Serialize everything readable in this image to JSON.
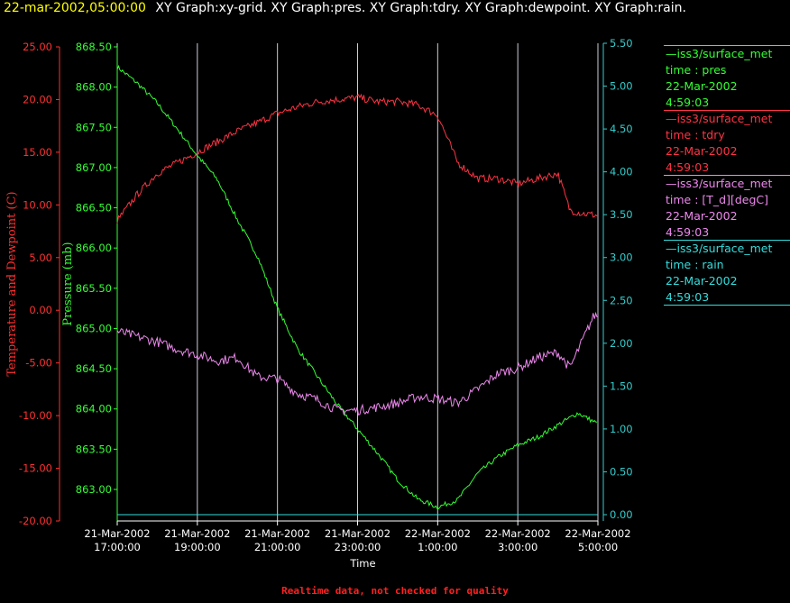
{
  "header": {
    "timestamp": "22-mar-2002,05:00:00",
    "titles": "XY Graph:xy-grid.  XY Graph:pres.  XY Graph:tdry.  XY Graph:dewpoint.  XY Graph:rain."
  },
  "colors": {
    "timestamp": "#ffff00",
    "temperature_axis": "#ff3030",
    "pressure_axis": "#33ff33",
    "rain_axis": "#33cccc",
    "pres_series": "#33ff33",
    "tdry_series": "#ff3344",
    "dewpoint_series": "#ee88ee",
    "rain_series": "#33dddd",
    "grid": "#ccccdd",
    "footer": "#ff2020"
  },
  "legend": [
    {
      "name": "—iss3/surface_met",
      "label": "time : pres",
      "date": "22-Mar-2002",
      "time": "4:59:03",
      "color": "#33ff33"
    },
    {
      "name": "—iss3/surface_met",
      "label": "time : tdry",
      "date": "22-Mar-2002",
      "time": "4:59:03",
      "color": "#ff3344"
    },
    {
      "name": "—iss3/surface_met",
      "label": "time : [T_d][degC]",
      "date": "22-Mar-2002",
      "time": "4:59:03",
      "color": "#ee88ee"
    },
    {
      "name": "—iss3/surface_met",
      "label": "time : rain",
      "date": "22-Mar-2002",
      "time": "4:59:03",
      "color": "#33dddd"
    }
  ],
  "footer": "Realtime data, not checked for quality",
  "chart_data": {
    "type": "line",
    "xlabel": "Time",
    "x_range_hours": [
      17,
      29
    ],
    "x_ticks": [
      {
        "date": "21-Mar-2002",
        "time": "17:00:00"
      },
      {
        "date": "21-Mar-2002",
        "time": "19:00:00"
      },
      {
        "date": "21-Mar-2002",
        "time": "21:00:00"
      },
      {
        "date": "21-Mar-2002",
        "time": "23:00:00"
      },
      {
        "date": "22-Mar-2002",
        "time": "1:00:00"
      },
      {
        "date": "22-Mar-2002",
        "time": "3:00:00"
      },
      {
        "date": "22-Mar-2002",
        "time": "5:00:00"
      }
    ],
    "grid": true,
    "axes": [
      {
        "id": "temp",
        "side": "left-outer",
        "label": "Temperature and Dewpoint (C)",
        "range": [
          -20,
          25
        ],
        "ticks": [
          "25.00",
          "20.00",
          "15.00",
          "10.00",
          "5.00",
          "0.00",
          "-5.00",
          "-10.00",
          "-15.00",
          "-20.00"
        ]
      },
      {
        "id": "pres",
        "side": "left-inner",
        "label": "Pressure (mb)",
        "range": [
          862.6,
          868.5
        ],
        "ticks": [
          "868.50",
          "868.00",
          "867.50",
          "867.00",
          "866.50",
          "866.00",
          "865.50",
          "865.00",
          "864.50",
          "864.00",
          "863.50",
          "863.00"
        ]
      },
      {
        "id": "rain",
        "side": "right",
        "label": "",
        "range": [
          -0.05,
          5.5
        ],
        "ticks": [
          "5.50",
          "5.00",
          "4.50",
          "4.00",
          "3.50",
          "3.00",
          "2.50",
          "2.00",
          "1.50",
          "1.00",
          "0.50",
          "0.00"
        ]
      }
    ],
    "series": [
      {
        "name": "pres",
        "axis": "pres",
        "x": [
          17.0,
          17.5,
          18.0,
          18.5,
          19.0,
          19.5,
          20.0,
          20.5,
          21.0,
          21.5,
          22.0,
          22.5,
          23.0,
          23.5,
          24.0,
          24.5,
          25.0,
          25.5,
          26.0,
          26.5,
          27.0,
          27.5,
          28.0,
          28.5,
          28.98
        ],
        "y": [
          868.25,
          868.05,
          867.8,
          867.48,
          867.15,
          866.85,
          866.35,
          865.9,
          865.25,
          864.75,
          864.4,
          864.05,
          863.75,
          863.45,
          863.12,
          862.88,
          862.78,
          862.87,
          863.2,
          863.4,
          863.55,
          863.65,
          863.8,
          863.95,
          863.82
        ],
        "noise": 0.03
      },
      {
        "name": "tdry",
        "axis": "temp",
        "x": [
          17.0,
          17.5,
          18.0,
          18.5,
          19.0,
          19.5,
          20.0,
          20.5,
          21.0,
          21.5,
          22.0,
          22.5,
          23.0,
          23.5,
          24.0,
          24.5,
          25.0,
          25.5,
          26.0,
          26.5,
          27.0,
          27.5,
          28.0,
          28.3,
          28.6,
          28.98
        ],
        "y": [
          8.5,
          11.0,
          13.0,
          14.0,
          15.0,
          16.0,
          17.0,
          17.8,
          18.7,
          19.3,
          19.8,
          20.0,
          20.2,
          19.8,
          19.8,
          19.5,
          18.5,
          14.0,
          12.5,
          12.5,
          12.0,
          12.5,
          13.0,
          9.5,
          9.2,
          9.0
        ],
        "noise": 0.35
      },
      {
        "name": "dewpoint",
        "axis": "temp",
        "x": [
          17.0,
          17.5,
          18.0,
          18.5,
          19.0,
          19.5,
          20.0,
          20.5,
          21.0,
          21.5,
          22.0,
          22.5,
          23.0,
          23.5,
          24.0,
          24.5,
          25.0,
          25.5,
          26.0,
          26.5,
          27.0,
          27.5,
          28.0,
          28.3,
          28.6,
          28.9,
          28.98
        ],
        "y": [
          -2.0,
          -2.5,
          -3.0,
          -3.7,
          -4.2,
          -4.8,
          -4.5,
          -6.3,
          -6.5,
          -7.9,
          -8.5,
          -9.5,
          -9.5,
          -9.2,
          -8.8,
          -8.2,
          -8.4,
          -8.8,
          -7.5,
          -6.0,
          -5.5,
          -4.5,
          -4.0,
          -5.5,
          -3.0,
          -0.5,
          -0.5
        ],
        "noise": 0.45
      },
      {
        "name": "rain",
        "axis": "rain",
        "x": [
          17.0,
          29.0
        ],
        "y": [
          0.0,
          0.0
        ],
        "noise": 0
      }
    ]
  }
}
